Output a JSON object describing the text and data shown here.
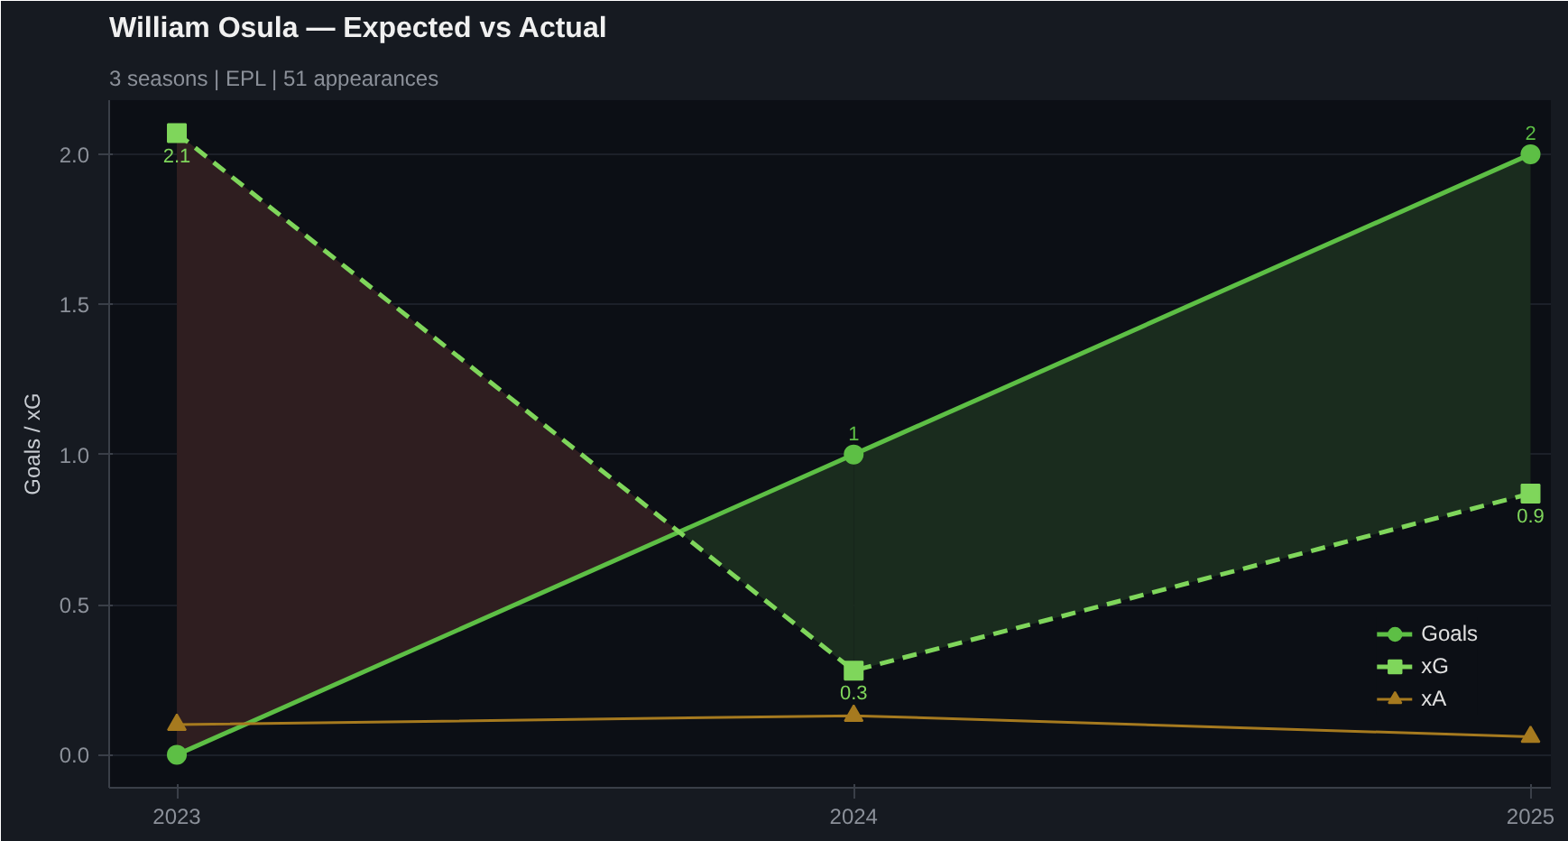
{
  "chart_data": {
    "type": "line",
    "title": "William Osula — Expected vs Actual",
    "subtitle": "3 seasons | EPL | 51 appearances",
    "ylabel": "Goals / xG",
    "x": [
      2023,
      2024,
      2025
    ],
    "series": [
      {
        "name": "Goals",
        "color": "#5dbf45",
        "values": [
          0,
          1,
          2
        ],
        "marker": "circle",
        "line_style": "solid",
        "value_labels": [
          null,
          "1",
          "2"
        ]
      },
      {
        "name": "xG",
        "color": "#7fd65b",
        "values": [
          2.07,
          0.28,
          0.87
        ],
        "marker": "square",
        "line_style": "dashed",
        "value_labels": [
          "2.1",
          "0.3",
          "0.9"
        ]
      },
      {
        "name": "xA",
        "color": "#a67a1f",
        "values": [
          0.1,
          0.13,
          0.06
        ],
        "marker": "triangle",
        "line_style": "solid"
      },
      {
        "x": [
          2023,
          2023.742
        ],
        "color": "#2f1e20",
        "values": [
          null,
          null
        ],
        "lower": [
          0,
          0.742
        ],
        "upper": [
          2.07,
          0.742
        ]
      },
      {
        "x": [
          2023.742,
          2024,
          2025
        ],
        "color": "#1a2c1e",
        "values": [
          null,
          null,
          null
        ],
        "lower": [
          0.742,
          0.28,
          0.87
        ],
        "upper": [
          0.742,
          1,
          2
        ]
      }
    ],
    "xlim": [
      2022.9,
      2025.03
    ],
    "xticks": [
      {
        "value": 2023,
        "label": "2023"
      },
      {
        "value": 2024,
        "label": "2024"
      },
      {
        "value": 2025,
        "label": "2025"
      }
    ],
    "ylim": [
      -0.11,
      2.18
    ],
    "yticks": [
      {
        "value": 0,
        "label": "0.0"
      },
      {
        "value": 0.5,
        "label": "0.5"
      },
      {
        "value": 1,
        "label": "1.0"
      },
      {
        "value": 1.5,
        "label": "1.5"
      },
      {
        "value": 2,
        "label": "2.0"
      }
    ],
    "grid": "y",
    "legend": "bottom right"
  }
}
